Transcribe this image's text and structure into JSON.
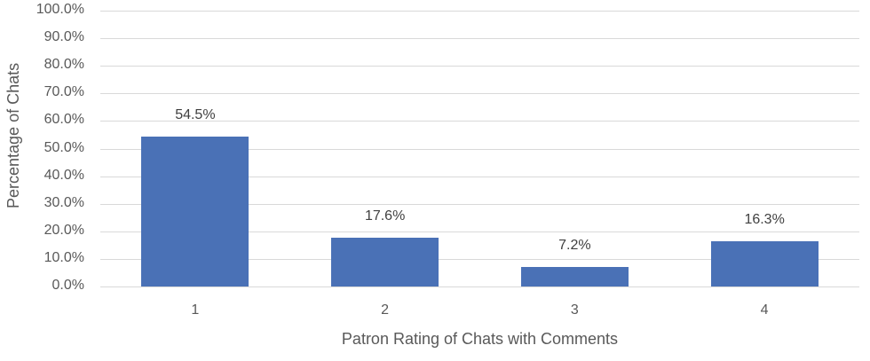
{
  "chart_data": {
    "type": "bar",
    "title": "",
    "xlabel": "Patron Rating of Chats with Comments",
    "ylabel": "Percentage of Chats",
    "categories": [
      "1",
      "2",
      "3",
      "4"
    ],
    "values": [
      54.5,
      17.6,
      7.2,
      16.3
    ],
    "data_labels": [
      "54.5%",
      "17.6%",
      "7.2%",
      "16.3%"
    ],
    "ylim": [
      0,
      100
    ],
    "yticks": [
      "0.0%",
      "10.0%",
      "20.0%",
      "30.0%",
      "40.0%",
      "50.0%",
      "60.0%",
      "70.0%",
      "80.0%",
      "90.0%",
      "100.0%"
    ],
    "grid": true,
    "legend": null,
    "bar_color": "#4a71b6"
  }
}
